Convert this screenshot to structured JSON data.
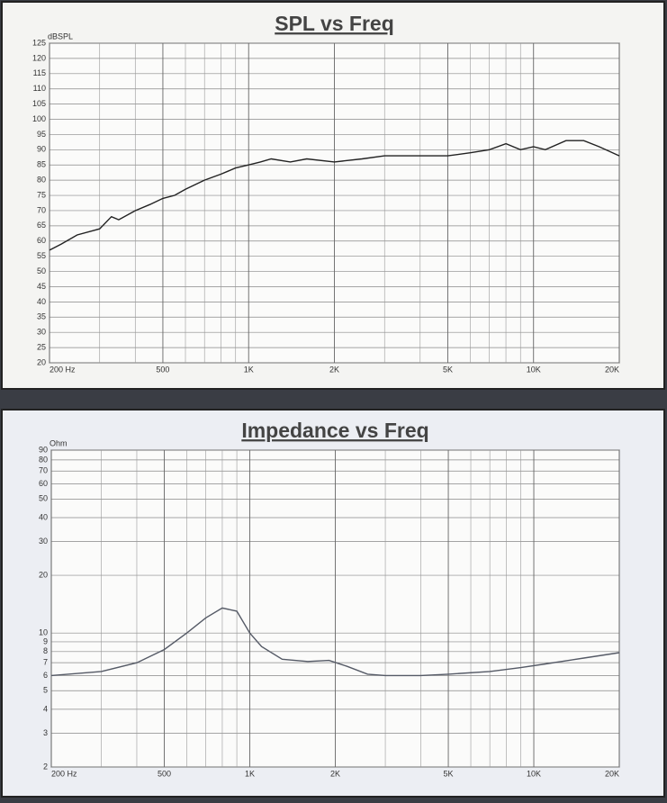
{
  "chart_data": [
    {
      "type": "line",
      "title": "SPL vs Freq",
      "y_label": "dBSPL",
      "x_log": true,
      "y_log": false,
      "grid": true,
      "xlim": [
        200,
        20000
      ],
      "ylim": [
        20,
        125
      ],
      "xticks": [
        {
          "value": 200,
          "label": "200  Hz"
        },
        500,
        {
          "value": 1000,
          "label": "1K"
        },
        {
          "value": 2000,
          "label": "2K"
        },
        {
          "value": 5000,
          "label": "5K"
        },
        {
          "value": 10000,
          "label": "10K"
        },
        {
          "value": 20000,
          "label": "20K"
        }
      ],
      "x_minor_grid": [
        300,
        400,
        600,
        700,
        800,
        900,
        3000,
        4000,
        6000,
        7000,
        8000,
        9000
      ],
      "yticks": [
        20,
        25,
        30,
        35,
        40,
        45,
        50,
        55,
        60,
        65,
        70,
        75,
        80,
        85,
        90,
        95,
        100,
        105,
        110,
        115,
        120,
        125
      ],
      "series": [
        {
          "color": "#222222",
          "x": [
            200,
            220,
            250,
            300,
            330,
            350,
            400,
            450,
            500,
            550,
            600,
            700,
            800,
            900,
            1000,
            1100,
            1200,
            1400,
            1600,
            2000,
            2500,
            3000,
            4000,
            5000,
            6000,
            7000,
            8000,
            9000,
            10000,
            11000,
            13000,
            15000,
            17000,
            20000
          ],
          "values": [
            57,
            59,
            62,
            64,
            68,
            67,
            70,
            72,
            74,
            75,
            77,
            80,
            82,
            84,
            85,
            86,
            87,
            86,
            87,
            86,
            87,
            88,
            88,
            88,
            89,
            90,
            92,
            90,
            91,
            90,
            93,
            93,
            91,
            88
          ]
        }
      ]
    },
    {
      "type": "line",
      "title": "Impedance vs Freq",
      "y_label": "Ohm",
      "x_log": true,
      "y_log": true,
      "grid": true,
      "xlim": [
        200,
        20000
      ],
      "ylim": [
        2,
        90
      ],
      "xticks": [
        {
          "value": 200,
          "label": "200  Hz"
        },
        500,
        {
          "value": 1000,
          "label": "1K"
        },
        {
          "value": 2000,
          "label": "2K"
        },
        {
          "value": 5000,
          "label": "5K"
        },
        {
          "value": 10000,
          "label": "10K"
        },
        {
          "value": 20000,
          "label": "20K"
        }
      ],
      "x_minor_grid": [
        300,
        400,
        600,
        700,
        800,
        900,
        3000,
        4000,
        6000,
        7000,
        8000,
        9000
      ],
      "yticks": [
        2,
        3,
        4,
        5,
        6,
        7,
        8,
        9,
        10,
        20,
        30,
        40,
        50,
        60,
        70,
        80,
        90
      ],
      "series": [
        {
          "color": "#555a66",
          "x": [
            200,
            300,
            400,
            500,
            600,
            700,
            800,
            900,
            1000,
            1100,
            1300,
            1600,
            1900,
            2200,
            2600,
            3000,
            4000,
            5000,
            7000,
            9000,
            11000,
            15000,
            20000
          ],
          "values": [
            6,
            6.3,
            7,
            8.2,
            10,
            12,
            13.5,
            13,
            10,
            8.5,
            7.3,
            7.1,
            7.2,
            6.7,
            6.1,
            6,
            6,
            6.1,
            6.3,
            6.6,
            6.9,
            7.4,
            7.9
          ]
        }
      ]
    }
  ]
}
